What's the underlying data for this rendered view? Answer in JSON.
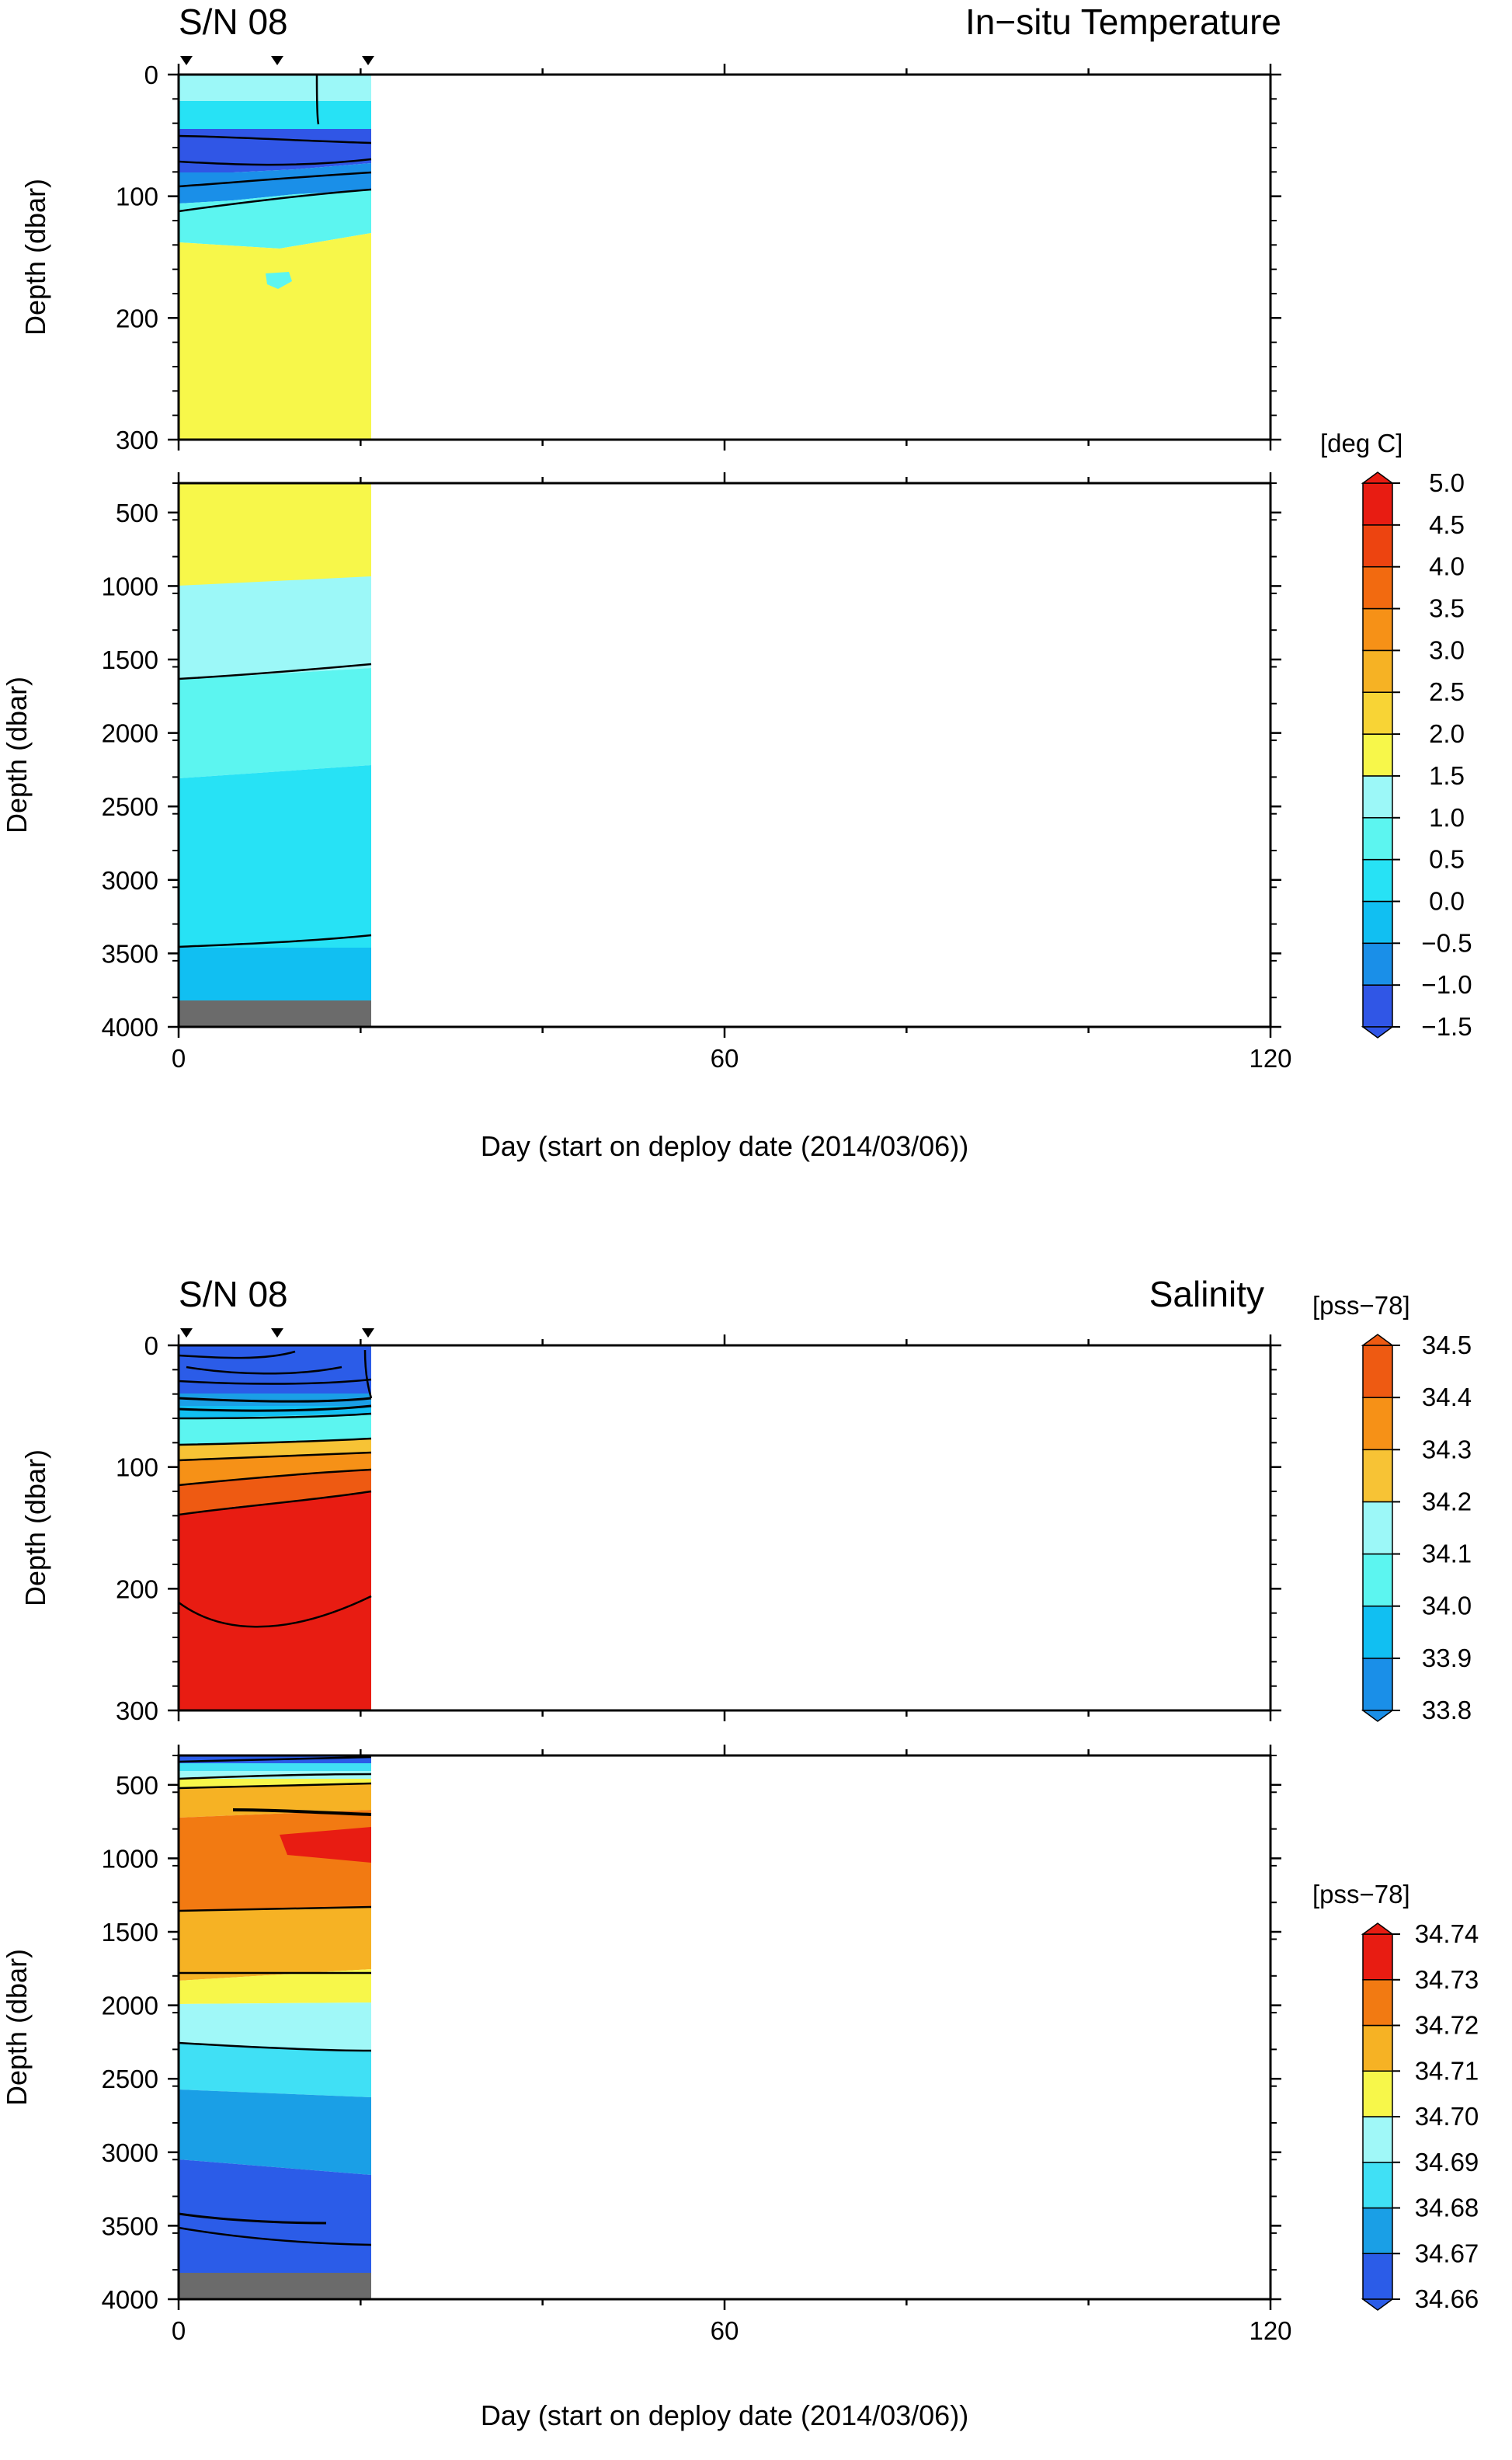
{
  "figure": {
    "serial": "S/N 08",
    "x_axis_title": "Day (start on deploy date (2014/03/06))"
  },
  "chart_data": [
    {
      "type": "heatmap",
      "title": "In−situ Temperature",
      "serial_label": "S/N 08",
      "xlabel": "Day (start on deploy date (2014/03/06))",
      "xlim": [
        0,
        120
      ],
      "x_ticks": [
        "0",
        "60",
        "120"
      ],
      "profile_days": [
        1,
        11,
        21
      ],
      "data_end_day": 21,
      "panels": [
        {
          "name": "upper",
          "ylabel": "Depth (dbar)",
          "ylim": [
            0,
            300
          ],
          "y_ticks": [
            "0",
            "100",
            "200",
            "300"
          ]
        },
        {
          "name": "lower",
          "ylabel": "Depth (dbar)",
          "ylim": [
            300,
            4000
          ],
          "y_ticks": [
            "500",
            "1000",
            "1500",
            "2000",
            "2500",
            "3000",
            "3500",
            "4000"
          ]
        }
      ],
      "colorbar": {
        "unit": "[deg C]",
        "tick_labels": [
          "5.0",
          "4.5",
          "4.0",
          "3.5",
          "3.0",
          "2.5",
          "2.0",
          "1.5",
          "1.0",
          "0.5",
          "0.0",
          "−0.5",
          "−1.0",
          "−1.5"
        ],
        "min": -1.5,
        "max": 5.0,
        "step": 0.5,
        "colors": [
          "#3056e6",
          "#1a8fe8",
          "#11bff2",
          "#27e2f5",
          "#5cf5f0",
          "#9cf8f8",
          "#f7f74a",
          "#f8d435",
          "#f6b224",
          "#f69117",
          "#f26a10",
          "#ed4410",
          "#e81c12"
        ]
      },
      "depth_layers": [
        {
          "depth_top": 0,
          "depth_bottom": 20,
          "temperature_band": "0.5 to 1.0"
        },
        {
          "depth_top": 20,
          "depth_bottom": 55,
          "temperature_band": "-0.5 to 0.0"
        },
        {
          "depth_top": 55,
          "depth_bottom": 90,
          "temperature_band": "-1.5 to -1.0"
        },
        {
          "depth_top": 90,
          "depth_bottom": 140,
          "temperature_band": "0.5 to 1.0"
        },
        {
          "depth_top": 140,
          "depth_bottom": 980,
          "temperature_band": "1.5 to 2.0"
        },
        {
          "depth_top": 980,
          "depth_bottom": 1600,
          "temperature_band": "0.5 to 1.0"
        },
        {
          "depth_top": 1600,
          "depth_bottom": 2300,
          "temperature_band": "0.0 to 0.5"
        },
        {
          "depth_top": 2300,
          "depth_bottom": 3800,
          "temperature_band": "-0.5 to 0.0"
        },
        {
          "depth_top": 3800,
          "depth_bottom": 4000,
          "temperature_band": "below data (sea floor)"
        }
      ]
    },
    {
      "type": "heatmap",
      "title": "Salinity",
      "serial_label": "S/N 08",
      "xlabel": "Day (start on deploy date (2014/03/06))",
      "xlim": [
        0,
        120
      ],
      "x_ticks": [
        "0",
        "60",
        "120"
      ],
      "profile_days": [
        1,
        11,
        21
      ],
      "data_end_day": 21,
      "panels": [
        {
          "name": "upper",
          "ylabel": "Depth (dbar)",
          "ylim": [
            0,
            300
          ],
          "y_ticks": [
            "0",
            "100",
            "200",
            "300"
          ]
        },
        {
          "name": "lower",
          "ylabel": "Depth (dbar)",
          "ylim": [
            300,
            4000
          ],
          "y_ticks": [
            "500",
            "1000",
            "1500",
            "2000",
            "2500",
            "3000",
            "3500",
            "4000"
          ]
        }
      ],
      "colorbars": [
        {
          "unit": "[pss−78]",
          "tick_labels": [
            "34.5",
            "34.4",
            "34.3",
            "34.2",
            "34.1",
            "34.0",
            "33.9",
            "33.8"
          ],
          "min": 33.8,
          "max": 34.5,
          "step": 0.1,
          "colors": [
            "#1a8fe8",
            "#11bff2",
            "#5cf5f0",
            "#9cf8f8",
            "#f7c335",
            "#f69117",
            "#ee5a12"
          ]
        },
        {
          "unit": "[pss−78]",
          "tick_labels": [
            "34.74",
            "34.73",
            "34.72",
            "34.71",
            "34.70",
            "34.69",
            "34.68",
            "34.67",
            "34.66"
          ],
          "min": 34.66,
          "max": 34.74,
          "step": 0.01,
          "colors": [
            "#2b5ce8",
            "#1a9fe6",
            "#40e0f5",
            "#a0f8f8",
            "#f7f74a",
            "#f6b224",
            "#f27a12",
            "#e81c12"
          ]
        }
      ],
      "depth_layers": [
        {
          "depth_top": 0,
          "depth_bottom": 40,
          "salinity_band": "33.8 to 33.9"
        },
        {
          "depth_top": 40,
          "depth_bottom": 70,
          "salinity_band": "34.0 to 34.2"
        },
        {
          "depth_top": 70,
          "depth_bottom": 120,
          "salinity_band": "34.3 to 34.4"
        },
        {
          "depth_top": 120,
          "depth_bottom": 330,
          "salinity_band": "above 34.4"
        },
        {
          "depth_top": 330,
          "depth_bottom": 400,
          "salinity_band": "34.66 to 34.68"
        },
        {
          "depth_top": 400,
          "depth_bottom": 1300,
          "salinity_band": "34.72 to 34.73"
        },
        {
          "depth_top": 1300,
          "depth_bottom": 1800,
          "salinity_band": "34.70 to 34.71"
        },
        {
          "depth_top": 1800,
          "depth_bottom": 2300,
          "salinity_band": "34.68 to 34.69"
        },
        {
          "depth_top": 2300,
          "depth_bottom": 2850,
          "salinity_band": "34.67 to 34.68"
        },
        {
          "depth_top": 2850,
          "depth_bottom": 3800,
          "salinity_band": "34.66 to 34.67"
        },
        {
          "depth_top": 3800,
          "depth_bottom": 4000,
          "salinity_band": "below data (sea floor)"
        }
      ]
    }
  ]
}
